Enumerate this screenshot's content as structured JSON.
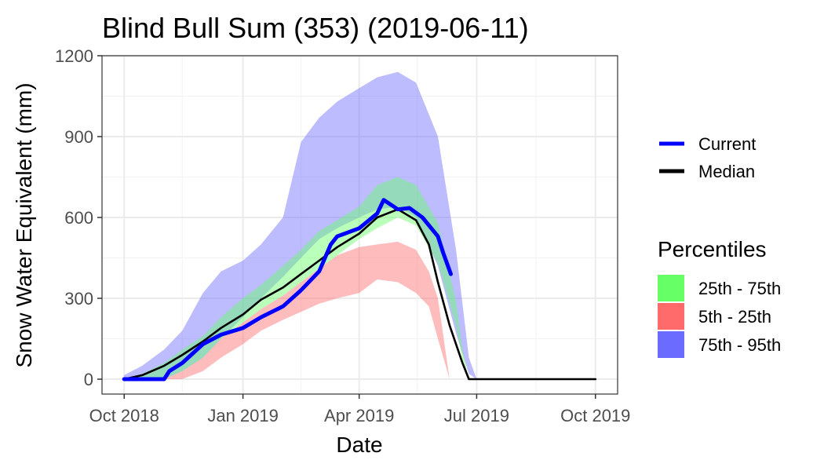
{
  "chart_data": {
    "type": "area",
    "title": "Blind Bull Sum (353) (2019-06-11)",
    "xlabel": "Date",
    "ylabel": "Snow Water Equivalent (mm)",
    "xlim": [
      "2018-10-01",
      "2019-10-01"
    ],
    "ylim": [
      0,
      1200
    ],
    "x_ticks": [
      "Oct 2018",
      "Jan 2019",
      "Apr 2019",
      "Jul 2019",
      "Oct 2019"
    ],
    "x_tick_dates": [
      "2018-10-01",
      "2019-01-01",
      "2019-04-01",
      "2019-07-01",
      "2019-10-01"
    ],
    "y_ticks": [
      0,
      300,
      600,
      900,
      1200
    ],
    "grid": true,
    "legend_position": "right",
    "bands": [
      {
        "name": "75th - 95th",
        "color": "#6b6bff",
        "opacity": 0.45,
        "x": [
          "2018-10-01",
          "2018-10-15",
          "2018-11-01",
          "2018-11-15",
          "2018-12-01",
          "2018-12-15",
          "2019-01-01",
          "2019-01-15",
          "2019-02-01",
          "2019-02-15",
          "2019-03-01",
          "2019-03-15",
          "2019-04-01",
          "2019-04-15",
          "2019-05-01",
          "2019-05-15",
          "2019-06-01",
          "2019-06-15",
          "2019-06-25",
          "2019-07-01",
          "2019-10-01"
        ],
        "low": [
          0,
          0,
          0,
          30,
          80,
          150,
          230,
          300,
          380,
          450,
          520,
          560,
          600,
          630,
          640,
          600,
          420,
          170,
          20,
          0,
          0
        ],
        "high": [
          15,
          50,
          110,
          180,
          320,
          400,
          440,
          500,
          600,
          880,
          970,
          1030,
          1080,
          1120,
          1140,
          1100,
          900,
          480,
          80,
          0,
          0
        ]
      },
      {
        "name": "25th - 75th",
        "color": "#66ff66",
        "opacity": 0.45,
        "x": [
          "2018-10-01",
          "2018-10-15",
          "2018-11-01",
          "2018-11-15",
          "2018-12-01",
          "2018-12-15",
          "2019-01-01",
          "2019-01-15",
          "2019-02-01",
          "2019-02-15",
          "2019-03-01",
          "2019-03-15",
          "2019-04-01",
          "2019-04-15",
          "2019-05-01",
          "2019-05-15",
          "2019-06-01",
          "2019-06-15",
          "2019-06-20",
          "2019-06-25",
          "2019-10-01"
        ],
        "low": [
          0,
          0,
          0,
          30,
          80,
          150,
          210,
          260,
          310,
          360,
          410,
          460,
          520,
          560,
          600,
          570,
          430,
          200,
          70,
          0,
          0
        ],
        "high": [
          0,
          20,
          60,
          110,
          160,
          230,
          300,
          350,
          420,
          480,
          550,
          590,
          640,
          720,
          750,
          720,
          580,
          290,
          110,
          0,
          0
        ]
      },
      {
        "name": "5th - 25th",
        "color": "#ff6b6b",
        "opacity": 0.45,
        "x": [
          "2018-10-01",
          "2018-10-15",
          "2018-11-01",
          "2018-11-15",
          "2018-12-01",
          "2018-12-15",
          "2019-01-01",
          "2019-01-15",
          "2019-02-01",
          "2019-02-15",
          "2019-03-01",
          "2019-03-15",
          "2019-04-01",
          "2019-04-15",
          "2019-05-01",
          "2019-05-15",
          "2019-05-25",
          "2019-06-01",
          "2019-06-10",
          "2019-10-01"
        ],
        "low": [
          0,
          0,
          0,
          0,
          30,
          80,
          130,
          180,
          220,
          250,
          280,
          300,
          320,
          370,
          360,
          320,
          270,
          150,
          0,
          0
        ],
        "high": [
          0,
          0,
          0,
          30,
          80,
          150,
          210,
          260,
          310,
          360,
          410,
          460,
          490,
          500,
          510,
          480,
          400,
          300,
          0,
          0
        ]
      }
    ],
    "series": [
      {
        "name": "Median",
        "color": "#000000",
        "x": [
          "2018-10-01",
          "2018-10-15",
          "2018-11-01",
          "2018-11-15",
          "2018-12-01",
          "2018-12-15",
          "2019-01-01",
          "2019-01-15",
          "2019-02-01",
          "2019-02-15",
          "2019-03-01",
          "2019-03-15",
          "2019-04-01",
          "2019-04-15",
          "2019-05-01",
          "2019-05-15",
          "2019-05-25",
          "2019-06-01",
          "2019-06-10",
          "2019-06-20",
          "2019-06-25",
          "2019-10-01"
        ],
        "values": [
          0,
          15,
          50,
          90,
          140,
          190,
          240,
          295,
          340,
          390,
          440,
          490,
          540,
          600,
          630,
          590,
          500,
          360,
          200,
          60,
          0,
          0
        ]
      },
      {
        "name": "Current",
        "color": "#0000ff",
        "x": [
          "2018-10-01",
          "2018-11-01",
          "2018-11-05",
          "2018-11-15",
          "2018-12-01",
          "2018-12-15",
          "2019-01-01",
          "2019-01-15",
          "2019-02-01",
          "2019-02-15",
          "2019-03-01",
          "2019-03-10",
          "2019-03-15",
          "2019-04-01",
          "2019-04-15",
          "2019-04-20",
          "2019-05-01",
          "2019-05-10",
          "2019-05-20",
          "2019-06-01",
          "2019-06-05",
          "2019-06-11"
        ],
        "values": [
          0,
          0,
          30,
          60,
          130,
          165,
          190,
          230,
          270,
          330,
          400,
          500,
          530,
          560,
          615,
          665,
          630,
          635,
          600,
          530,
          470,
          390
        ]
      }
    ]
  }
}
